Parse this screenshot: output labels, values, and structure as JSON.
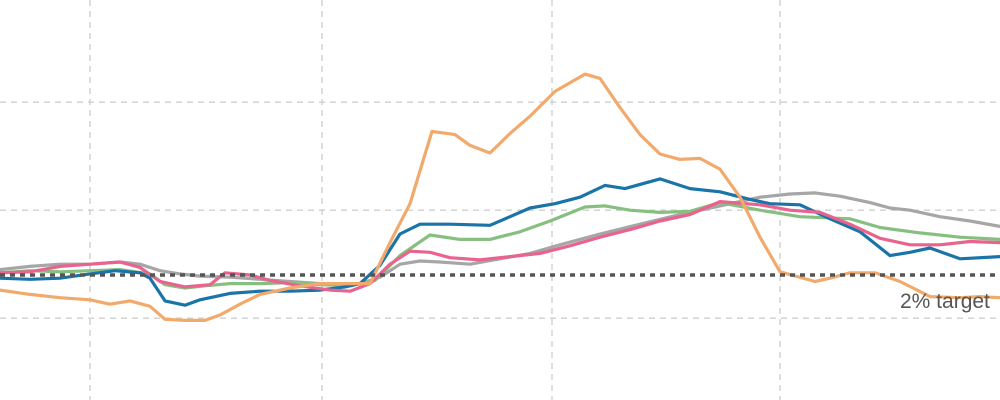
{
  "chart_data": {
    "type": "line",
    "grid": true,
    "annotations": [
      {
        "text": "2% target",
        "y": 2
      }
    ],
    "reference_lines": [
      {
        "y": 2,
        "style": "dotted",
        "color": "#555555"
      }
    ],
    "series": [
      {
        "color": "#a6a6a6",
        "values": [
          [
            0,
            2.05
          ],
          [
            30,
            2.08
          ],
          [
            60,
            2.1
          ],
          [
            90,
            2.1
          ],
          [
            120,
            2.12
          ],
          [
            140,
            2.1
          ],
          [
            160,
            2.04
          ],
          [
            180,
            2.01
          ],
          [
            200,
            1.99
          ],
          [
            230,
            1.98
          ],
          [
            260,
            1.96
          ],
          [
            290,
            1.94
          ],
          [
            320,
            1.92
          ],
          [
            340,
            1.9
          ],
          [
            360,
            1.92
          ],
          [
            380,
            1.98
          ],
          [
            400,
            2.1
          ],
          [
            420,
            2.13
          ],
          [
            440,
            2.12
          ],
          [
            470,
            2.1
          ],
          [
            500,
            2.15
          ],
          [
            530,
            2.2
          ],
          [
            560,
            2.28
          ],
          [
            600,
            2.38
          ],
          [
            640,
            2.47
          ],
          [
            680,
            2.56
          ],
          [
            720,
            2.64
          ],
          [
            760,
            2.72
          ],
          [
            790,
            2.75
          ],
          [
            815,
            2.76
          ],
          [
            840,
            2.73
          ],
          [
            870,
            2.67
          ],
          [
            890,
            2.62
          ],
          [
            910,
            2.6
          ],
          [
            940,
            2.54
          ],
          [
            970,
            2.5
          ],
          [
            1000,
            2.45
          ]
        ]
      },
      {
        "color": "#86bf80",
        "values": [
          [
            0,
            2.02
          ],
          [
            30,
            2.04
          ],
          [
            60,
            2.03
          ],
          [
            90,
            2.04
          ],
          [
            120,
            2.05
          ],
          [
            150,
            2.01
          ],
          [
            165,
            1.91
          ],
          [
            185,
            1.88
          ],
          [
            205,
            1.9
          ],
          [
            230,
            1.92
          ],
          [
            260,
            1.92
          ],
          [
            290,
            1.93
          ],
          [
            320,
            1.91
          ],
          [
            350,
            1.9
          ],
          [
            375,
            1.95
          ],
          [
            400,
            2.18
          ],
          [
            430,
            2.37
          ],
          [
            460,
            2.33
          ],
          [
            490,
            2.33
          ],
          [
            520,
            2.4
          ],
          [
            550,
            2.5
          ],
          [
            585,
            2.63
          ],
          [
            605,
            2.64
          ],
          [
            630,
            2.6
          ],
          [
            660,
            2.58
          ],
          [
            690,
            2.59
          ],
          [
            720,
            2.67
          ],
          [
            760,
            2.6
          ],
          [
            800,
            2.54
          ],
          [
            850,
            2.52
          ],
          [
            880,
            2.44
          ],
          [
            920,
            2.39
          ],
          [
            960,
            2.35
          ],
          [
            1000,
            2.33
          ]
        ]
      },
      {
        "color": "#1a74a8",
        "values": [
          [
            0,
            1.97
          ],
          [
            30,
            1.96
          ],
          [
            60,
            1.97
          ],
          [
            90,
            2.01
          ],
          [
            115,
            2.04
          ],
          [
            140,
            2.02
          ],
          [
            150,
            1.97
          ],
          [
            165,
            1.76
          ],
          [
            185,
            1.72
          ],
          [
            200,
            1.77
          ],
          [
            230,
            1.83
          ],
          [
            260,
            1.85
          ],
          [
            290,
            1.85
          ],
          [
            320,
            1.86
          ],
          [
            345,
            1.89
          ],
          [
            360,
            1.92
          ],
          [
            380,
            2.09
          ],
          [
            400,
            2.38
          ],
          [
            420,
            2.47
          ],
          [
            450,
            2.47
          ],
          [
            490,
            2.46
          ],
          [
            510,
            2.54
          ],
          [
            530,
            2.62
          ],
          [
            555,
            2.66
          ],
          [
            580,
            2.72
          ],
          [
            605,
            2.83
          ],
          [
            625,
            2.8
          ],
          [
            660,
            2.89
          ],
          [
            690,
            2.8
          ],
          [
            720,
            2.77
          ],
          [
            750,
            2.7
          ],
          [
            770,
            2.66
          ],
          [
            800,
            2.65
          ],
          [
            830,
            2.52
          ],
          [
            860,
            2.4
          ],
          [
            890,
            2.18
          ],
          [
            910,
            2.21
          ],
          [
            930,
            2.25
          ],
          [
            960,
            2.15
          ],
          [
            1000,
            2.17
          ]
        ]
      },
      {
        "color": "#e9638f",
        "values": [
          [
            0,
            2.02
          ],
          [
            30,
            2.03
          ],
          [
            60,
            2.08
          ],
          [
            90,
            2.1
          ],
          [
            120,
            2.12
          ],
          [
            140,
            2.07
          ],
          [
            160,
            1.94
          ],
          [
            185,
            1.89
          ],
          [
            210,
            1.91
          ],
          [
            225,
            2.02
          ],
          [
            250,
            2
          ],
          [
            270,
            1.95
          ],
          [
            300,
            1.9
          ],
          [
            330,
            1.86
          ],
          [
            350,
            1.85
          ],
          [
            370,
            1.92
          ],
          [
            390,
            2.1
          ],
          [
            410,
            2.22
          ],
          [
            430,
            2.21
          ],
          [
            450,
            2.16
          ],
          [
            480,
            2.14
          ],
          [
            510,
            2.17
          ],
          [
            540,
            2.2
          ],
          [
            570,
            2.27
          ],
          [
            600,
            2.35
          ],
          [
            630,
            2.42
          ],
          [
            660,
            2.5
          ],
          [
            690,
            2.56
          ],
          [
            720,
            2.68
          ],
          [
            760,
            2.65
          ],
          [
            790,
            2.6
          ],
          [
            820,
            2.58
          ],
          [
            850,
            2.47
          ],
          [
            880,
            2.34
          ],
          [
            910,
            2.28
          ],
          [
            940,
            2.28
          ],
          [
            970,
            2.31
          ],
          [
            1000,
            2.3
          ]
        ]
      },
      {
        "color": "#f2aa6c",
        "values": [
          [
            0,
            1.86
          ],
          [
            30,
            1.82
          ],
          [
            60,
            1.79
          ],
          [
            90,
            1.77
          ],
          [
            110,
            1.73
          ],
          [
            130,
            1.76
          ],
          [
            150,
            1.71
          ],
          [
            165,
            1.59
          ],
          [
            185,
            1.58
          ],
          [
            205,
            1.58
          ],
          [
            220,
            1.63
          ],
          [
            240,
            1.73
          ],
          [
            260,
            1.82
          ],
          [
            290,
            1.88
          ],
          [
            320,
            1.92
          ],
          [
            350,
            1.92
          ],
          [
            370,
            1.92
          ],
          [
            390,
            2.3
          ],
          [
            410,
            2.66
          ],
          [
            432,
            3.33
          ],
          [
            455,
            3.3
          ],
          [
            470,
            3.2
          ],
          [
            490,
            3.13
          ],
          [
            510,
            3.31
          ],
          [
            530,
            3.47
          ],
          [
            555,
            3.7
          ],
          [
            585,
            3.86
          ],
          [
            600,
            3.82
          ],
          [
            620,
            3.55
          ],
          [
            640,
            3.3
          ],
          [
            660,
            3.12
          ],
          [
            680,
            3.07
          ],
          [
            700,
            3.08
          ],
          [
            720,
            2.98
          ],
          [
            740,
            2.72
          ],
          [
            760,
            2.35
          ],
          [
            780,
            2.03
          ],
          [
            815,
            1.94
          ],
          [
            830,
            1.97
          ],
          [
            850,
            2.02
          ],
          [
            875,
            2.02
          ],
          [
            900,
            1.94
          ],
          [
            930,
            1.8
          ],
          [
            960,
            1.79
          ],
          [
            980,
            1.8
          ],
          [
            1000,
            1.79
          ]
        ]
      }
    ]
  }
}
